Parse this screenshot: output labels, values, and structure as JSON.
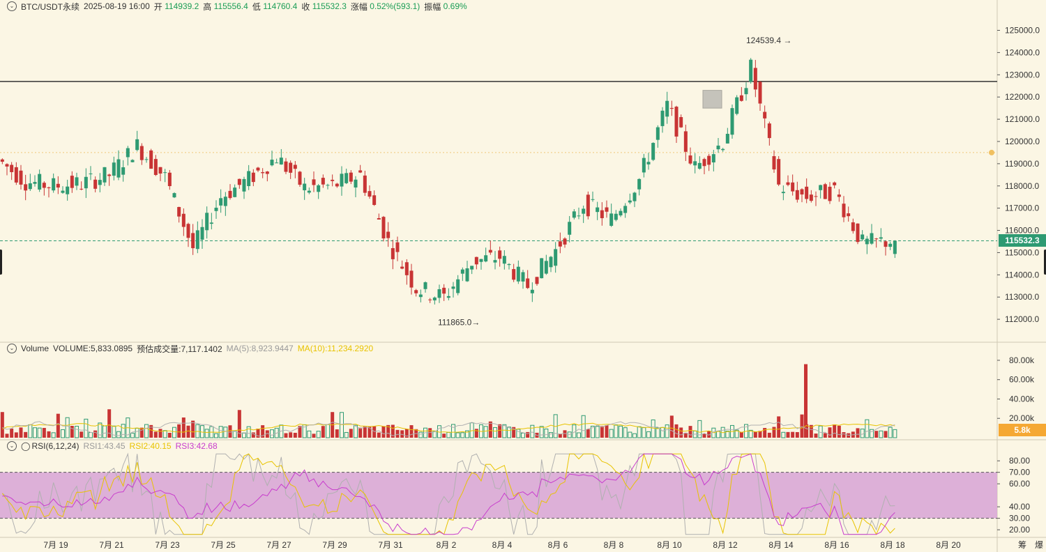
{
  "header": {
    "symbol": "BTC/USDT永续",
    "datetime": "2025-08-19 16:00",
    "open_label": "开",
    "open": "114939.2",
    "high_label": "高",
    "high": "115556.4",
    "low_label": "低",
    "low": "114760.4",
    "close_label": "收",
    "close": "115532.3",
    "change_label": "涨幅",
    "change": "0.52%(593.1)",
    "amplitude_label": "振幅",
    "amplitude": "0.69%"
  },
  "volume_legend": {
    "title": "Volume",
    "volume": "VOLUME:5,833.0895",
    "estimated": "预估成交量:7,117.1402",
    "ma5": "MA(5):8,923.9447",
    "ma10": "MA(10):11,234.2920"
  },
  "rsi_legend": {
    "title": "RSI(6,12,24)",
    "rsi1": "RSI1:43.45",
    "rsi2": "RSI2:40.15",
    "rsi3": "RSI3:42.68"
  },
  "price_tag": "115532.3",
  "volume_tag": "5.8k",
  "annotations": {
    "high_marker": "124539.4",
    "low_marker": "111865.0"
  },
  "corner_labels": [
    "筹",
    "爆"
  ],
  "colors": {
    "up": "#2e9a72",
    "down": "#c83434",
    "background": "#fbf6e4",
    "rsi_band": "#d9a8d6",
    "volume_tag": "#f5a833",
    "price_tag": "#2e9a72"
  },
  "chart_data": [
    {
      "type": "candlestick",
      "title": "BTC/USDT永续",
      "x_ticks": [
        "7月 19",
        "7月 21",
        "7月 23",
        "7月 25",
        "7月 27",
        "7月 29",
        "7月 31",
        "8月 2",
        "8月 4",
        "8月 6",
        "8月 8",
        "8月 10",
        "8月 12",
        "8月 14",
        "8月 16",
        "8月 18",
        "8月 20"
      ],
      "y_ticks": [
        "112000.0",
        "113000.0",
        "114000.0",
        "115000.0",
        "116000.0",
        "117000.0",
        "118000.0",
        "119000.0",
        "120000.0",
        "121000.0",
        "122000.0",
        "123000.0",
        "124000.0",
        "125000.0"
      ],
      "ylim": [
        111000,
        125800
      ],
      "horizontal_line": 122700,
      "dotted_line": 119500,
      "current_price_line": 115532.3,
      "close_path": [
        [
          "7月 18",
          119200
        ],
        [
          "7月 19",
          118200
        ],
        [
          "7月 20",
          118000
        ],
        [
          "7月 21",
          118100
        ],
        [
          "7月 22",
          118500
        ],
        [
          "7月 23",
          119800
        ],
        [
          "7月 24",
          118400
        ],
        [
          "7月 25",
          115200
        ],
        [
          "7月 26",
          117500
        ],
        [
          "7月 27",
          118300
        ],
        [
          "7月 28",
          119300
        ],
        [
          "7月 29",
          117900
        ],
        [
          "7月 30",
          118000
        ],
        [
          "7月 31",
          118500
        ],
        [
          "8月 1",
          115500
        ],
        [
          "8月 2",
          113400
        ],
        [
          "8月 3",
          113000
        ],
        [
          "8月 4",
          114600
        ],
        [
          "8月 5",
          114800
        ],
        [
          "8月 6",
          113500
        ],
        [
          "8月 7",
          115100
        ],
        [
          "8月 8",
          117200
        ],
        [
          "8月 9",
          116500
        ],
        [
          "8月 10",
          118300
        ],
        [
          "8月 11",
          121600
        ],
        [
          "8月 12",
          118800
        ],
        [
          "8月 13",
          120000
        ],
        [
          "8月 14",
          123300
        ],
        [
          "8月 15",
          118000
        ],
        [
          "8月 16",
          117500
        ],
        [
          "8月 17",
          117800
        ],
        [
          "8月 18",
          115400
        ],
        [
          "8月 19",
          115532.3
        ]
      ]
    },
    {
      "type": "bar",
      "title": "Volume",
      "y_ticks": [
        "20.00k",
        "40.00k",
        "60.00k",
        "80.00k"
      ],
      "ylim": [
        0,
        85000
      ],
      "max_bar": 76000
    },
    {
      "type": "line",
      "title": "RSI(6,12,24)",
      "y_ticks": [
        "20.00",
        "30.00",
        "40.00",
        "60.00",
        "70.00",
        "80.00"
      ],
      "ylim": [
        14,
        88
      ],
      "band": [
        30,
        70
      ],
      "series": [
        {
          "name": "RSI1",
          "last": 43.45
        },
        {
          "name": "RSI2",
          "last": 40.15
        },
        {
          "name": "RSI3",
          "last": 42.68
        }
      ]
    }
  ]
}
